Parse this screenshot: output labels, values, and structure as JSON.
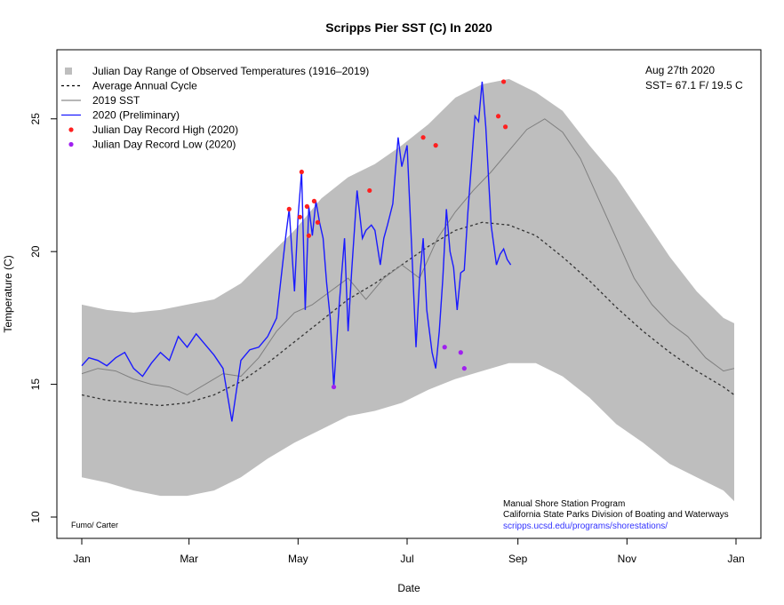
{
  "chart_data": {
    "type": "line",
    "title": "Scripps Pier SST (C) In 2020",
    "xlabel": "Date",
    "ylabel": "Temperature (C)",
    "ylim": [
      10,
      27
    ],
    "xlim_days": [
      1,
      367
    ],
    "x_ticks": [
      {
        "day": 1,
        "label": "Jan"
      },
      {
        "day": 61,
        "label": "Mar"
      },
      {
        "day": 122,
        "label": "May"
      },
      {
        "day": 183,
        "label": "Jul"
      },
      {
        "day": 245,
        "label": "Sep"
      },
      {
        "day": 306,
        "label": "Nov"
      },
      {
        "day": 367,
        "label": "Jan"
      }
    ],
    "y_ticks": [
      10,
      15,
      20,
      25
    ],
    "grid": false,
    "legend": {
      "placement": "top-left",
      "entries": [
        {
          "label": "Julian Day Range of Observed Temperatures (1916–2019)",
          "symbol": "square",
          "color": "#bebebe"
        },
        {
          "label": "Average Annual Cycle",
          "symbol": "dotted-line",
          "color": "#000000"
        },
        {
          "label": "2019 SST",
          "symbol": "line",
          "color": "#8c8c8c"
        },
        {
          "label": "2020 (Preliminary)",
          "symbol": "line",
          "color": "#1a1aff"
        },
        {
          "label": "Julian Day Record High (2020)",
          "symbol": "dot",
          "color": "#ff2020"
        },
        {
          "label": "Julian Day Record Low (2020)",
          "symbol": "dot",
          "color": "#a020f0"
        }
      ]
    },
    "annotations": {
      "date_text": "Aug 27th 2020",
      "sst_text": "SST= 67.1 F/ 19.5 C",
      "credit": "Fumo/ Carter",
      "program": "Manual Shore Station Program",
      "agency": "California State Parks Division of Boating and Waterways",
      "url": "scripps.ucsd.edu/programs/shorestations/"
    },
    "colors": {
      "range": "#bebebe",
      "avg": "#333333",
      "sst2019": "#7f7f7f",
      "sst2020": "#1a1aff",
      "record_high": "#ff2020",
      "record_low": "#a020f0",
      "url": "#3333ff"
    },
    "series": [
      {
        "name": "Julian Day Range of Observed Temperatures (1916–2019)",
        "kind": "band",
        "x": [
          1,
          15,
          30,
          45,
          60,
          75,
          90,
          105,
          120,
          135,
          150,
          165,
          180,
          195,
          210,
          225,
          240,
          255,
          270,
          285,
          300,
          315,
          330,
          345,
          360,
          366
        ],
        "upper": [
          18.0,
          17.8,
          17.7,
          17.8,
          18.0,
          18.2,
          18.8,
          19.8,
          20.8,
          22.0,
          22.8,
          23.3,
          24.0,
          24.8,
          25.8,
          26.3,
          26.5,
          26.0,
          25.3,
          24.0,
          22.8,
          21.3,
          19.8,
          18.5,
          17.5,
          17.3
        ],
        "lower": [
          11.5,
          11.3,
          11.0,
          10.8,
          10.8,
          11.0,
          11.5,
          12.2,
          12.8,
          13.3,
          13.8,
          14.0,
          14.3,
          14.8,
          15.2,
          15.5,
          15.8,
          15.8,
          15.3,
          14.5,
          13.5,
          12.8,
          12.0,
          11.5,
          11.0,
          10.6
        ]
      },
      {
        "name": "Average Annual Cycle",
        "kind": "line",
        "x": [
          1,
          15,
          30,
          45,
          60,
          75,
          90,
          105,
          120,
          135,
          150,
          165,
          180,
          195,
          210,
          225,
          240,
          255,
          270,
          285,
          300,
          315,
          330,
          345,
          360,
          366
        ],
        "y": [
          14.6,
          14.4,
          14.3,
          14.2,
          14.3,
          14.6,
          15.1,
          15.8,
          16.6,
          17.4,
          18.2,
          18.8,
          19.5,
          20.2,
          20.8,
          21.1,
          21.0,
          20.6,
          19.8,
          18.9,
          17.9,
          17.0,
          16.2,
          15.5,
          14.9,
          14.6
        ]
      },
      {
        "name": "2019 SST",
        "kind": "line",
        "x": [
          1,
          10,
          20,
          30,
          40,
          50,
          60,
          70,
          80,
          90,
          100,
          110,
          120,
          130,
          140,
          150,
          160,
          170,
          180,
          190,
          200,
          210,
          220,
          230,
          240,
          250,
          260,
          270,
          280,
          290,
          300,
          310,
          320,
          330,
          340,
          350,
          360,
          366
        ],
        "y": [
          15.4,
          15.6,
          15.5,
          15.2,
          15.0,
          14.9,
          14.6,
          15.0,
          15.4,
          15.3,
          16.0,
          17.0,
          17.7,
          18.0,
          18.5,
          19.0,
          18.2,
          19.0,
          19.5,
          19.0,
          20.5,
          21.5,
          22.3,
          23.0,
          23.8,
          24.6,
          25.0,
          24.5,
          23.5,
          22.0,
          20.5,
          19.0,
          18.0,
          17.3,
          16.8,
          16.0,
          15.5,
          15.6
        ]
      },
      {
        "name": "2020 (Preliminary)",
        "kind": "line",
        "x": [
          1,
          5,
          10,
          15,
          20,
          25,
          30,
          35,
          40,
          45,
          50,
          55,
          60,
          65,
          70,
          75,
          80,
          85,
          90,
          95,
          100,
          105,
          110,
          115,
          117,
          120,
          122,
          124,
          126,
          128,
          130,
          132,
          134,
          136,
          138,
          140,
          142,
          145,
          148,
          150,
          152,
          155,
          158,
          160,
          163,
          165,
          168,
          170,
          172,
          175,
          178,
          180,
          183,
          186,
          188,
          190,
          192,
          194,
          197,
          199,
          201,
          203,
          205,
          207,
          209,
          211,
          213,
          215,
          217,
          219,
          221,
          223,
          225,
          227,
          230,
          233,
          235,
          237,
          239,
          241
        ],
        "y": [
          15.7,
          16.0,
          15.9,
          15.7,
          16.0,
          16.2,
          15.6,
          15.3,
          15.8,
          16.2,
          15.9,
          16.8,
          16.4,
          16.9,
          16.5,
          16.1,
          15.6,
          13.6,
          15.9,
          16.3,
          16.4,
          16.8,
          17.5,
          20.5,
          21.6,
          18.5,
          21.3,
          23.0,
          17.8,
          21.7,
          20.6,
          21.9,
          21.1,
          20.5,
          18.8,
          17.5,
          14.9,
          18.0,
          20.5,
          17.0,
          19.3,
          22.3,
          20.5,
          20.8,
          21.0,
          20.8,
          19.5,
          20.5,
          21.0,
          21.8,
          24.3,
          23.2,
          24.0,
          19.5,
          16.4,
          19.0,
          20.5,
          17.8,
          16.2,
          15.6,
          17.0,
          19.0,
          21.6,
          20.0,
          19.4,
          17.8,
          19.2,
          19.3,
          21.5,
          23.3,
          25.1,
          24.9,
          26.4,
          24.7,
          21.0,
          19.5,
          19.9,
          20.1,
          19.7,
          19.5
        ]
      }
    ],
    "record_highs": [
      {
        "day": 117,
        "y": 21.6
      },
      {
        "day": 123,
        "y": 21.3
      },
      {
        "day": 124,
        "y": 23.0
      },
      {
        "day": 127,
        "y": 21.7
      },
      {
        "day": 128,
        "y": 20.6
      },
      {
        "day": 131,
        "y": 21.9
      },
      {
        "day": 133,
        "y": 21.1
      },
      {
        "day": 162,
        "y": 22.3
      },
      {
        "day": 192,
        "y": 24.3
      },
      {
        "day": 199,
        "y": 24.0
      },
      {
        "day": 234,
        "y": 25.1
      },
      {
        "day": 237,
        "y": 26.4
      },
      {
        "day": 238,
        "y": 24.7
      }
    ],
    "record_lows": [
      {
        "day": 142,
        "y": 14.9
      },
      {
        "day": 204,
        "y": 16.4
      },
      {
        "day": 213,
        "y": 16.2
      },
      {
        "day": 215,
        "y": 15.6
      }
    ]
  }
}
